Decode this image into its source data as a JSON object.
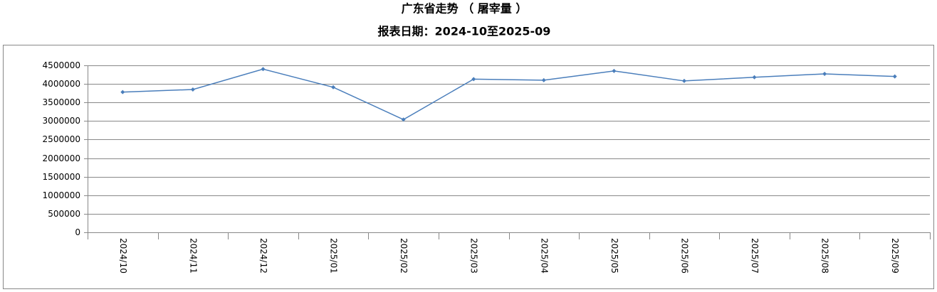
{
  "chart_data": {
    "type": "line",
    "title": "广东省走势 （ 屠宰量 ）",
    "subtitle": "报表日期：2024-10至2025-09",
    "categories": [
      "2024/10",
      "2024/11",
      "2024/12",
      "2025/01",
      "2025/02",
      "2025/03",
      "2025/04",
      "2025/05",
      "2025/06",
      "2025/07",
      "2025/08",
      "2025/09"
    ],
    "values": [
      3780000,
      3850000,
      4400000,
      3910000,
      3040000,
      4130000,
      4100000,
      4350000,
      4080000,
      4180000,
      4270000,
      4200000
    ],
    "color": "#4a7ebb",
    "ylim": [
      0,
      4500000
    ],
    "yticks": [
      0,
      500000,
      1000000,
      1500000,
      2000000,
      2500000,
      3000000,
      3500000,
      4000000,
      4500000
    ],
    "grid": true
  }
}
